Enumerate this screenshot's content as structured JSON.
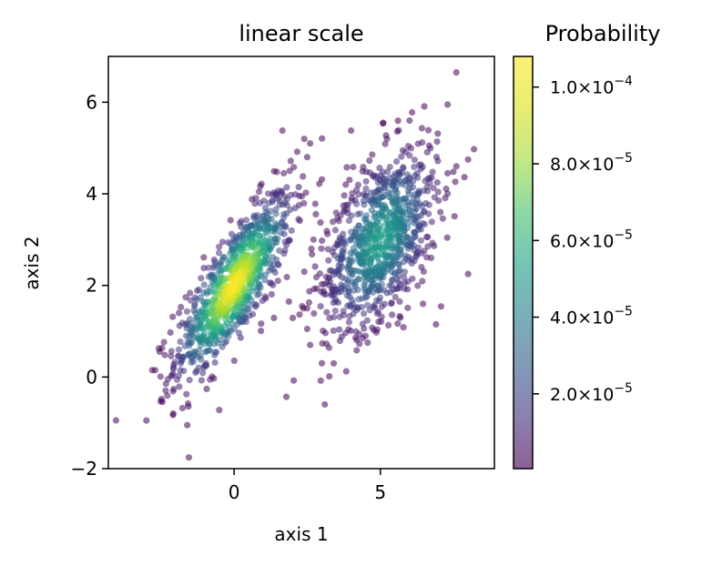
{
  "chart_data": {
    "type": "scatter",
    "title": "linear scale",
    "xlabel": "axis 1",
    "ylabel": "axis 2",
    "xlim": [
      -4.3,
      8.9
    ],
    "ylim": [
      -2,
      7
    ],
    "xticks": [
      0,
      5
    ],
    "yticks": [
      -2,
      0,
      2,
      4,
      6
    ],
    "xtick_labels": [
      "0",
      "5"
    ],
    "ytick_labels": [
      "−2",
      "0",
      "2",
      "4",
      "6"
    ],
    "grid": false,
    "colormap": "viridis",
    "point_alpha": 0.55,
    "clusters": [
      {
        "center": [
          0,
          2
        ],
        "sd": [
          1.0,
          1.0
        ],
        "correlation": 0.8,
        "approx_count": 900,
        "peak_probability": 0.000108
      },
      {
        "center": [
          5,
          3
        ],
        "sd": [
          1.0,
          1.0
        ],
        "correlation": 0.5,
        "approx_count": 900,
        "peak_probability": 6e-05
      }
    ],
    "colorbar": {
      "label": "Probability",
      "range": [
        5e-07,
        0.000108
      ],
      "ticks": [
        2e-05,
        4e-05,
        6e-05,
        8e-05,
        0.0001
      ],
      "tick_labels": [
        {
          "mantissa": "2.0×10",
          "exponent": "−5"
        },
        {
          "mantissa": "4.0×10",
          "exponent": "−5"
        },
        {
          "mantissa": "6.0×10",
          "exponent": "−5"
        },
        {
          "mantissa": "8.0×10",
          "exponent": "−5"
        },
        {
          "mantissa": "1.0×10",
          "exponent": "−4"
        }
      ]
    },
    "outliers": [
      [
        7.6,
        6.65
      ],
      [
        7.3,
        5.95
      ],
      [
        6.0,
        5.6
      ],
      [
        5.1,
        5.55
      ],
      [
        4.0,
        5.38
      ],
      [
        2.6,
        5.1
      ],
      [
        2.4,
        5.2
      ],
      [
        2.5,
        4.8
      ],
      [
        1.7,
        4.45
      ],
      [
        1.9,
        4.5
      ],
      [
        8.0,
        2.25
      ],
      [
        8.0,
        4.75
      ],
      [
        7.6,
        4.6
      ],
      [
        -3.0,
        -0.95
      ],
      [
        -1.6,
        -1.05
      ],
      [
        3.1,
        -0.6
      ],
      [
        2.5,
        1.5
      ],
      [
        2.5,
        1.05
      ],
      [
        2.4,
        2.3
      ],
      [
        3.0,
        0.3
      ],
      [
        2.6,
        0.7
      ],
      [
        -2.7,
        0.15
      ],
      [
        -2.8,
        0.15
      ],
      [
        6.9,
        1.15
      ],
      [
        1.5,
        2.1
      ]
    ]
  }
}
